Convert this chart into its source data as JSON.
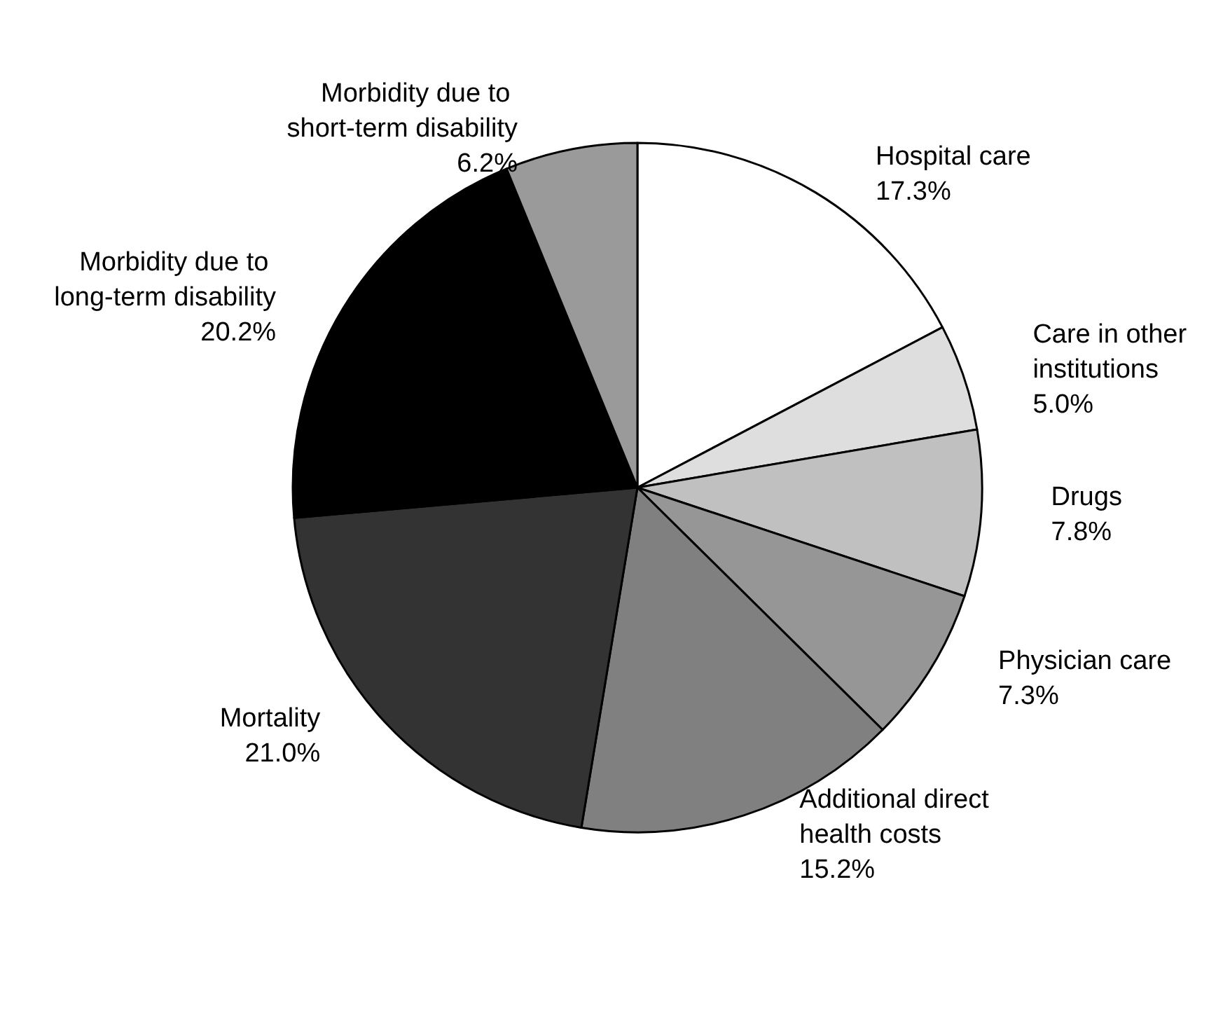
{
  "chart_data": {
    "type": "pie",
    "categories": [
      "Hospital care",
      "Care in other institutions",
      "Drugs",
      "Physician care",
      "Additional direct health costs",
      "Mortality",
      "Morbidity due to long-term disability",
      "Morbidity due to short-term disability"
    ],
    "values": [
      17.3,
      5.0,
      7.8,
      7.3,
      15.2,
      21.0,
      20.2,
      6.2
    ],
    "colors": [
      "#ffffff",
      "#dedede",
      "#c0c0c0",
      "#969696",
      "#808080",
      "#333333",
      "#000000",
      "#9a9a9a"
    ],
    "value_labels": [
      "17.3%",
      "5.0%",
      "7.8%",
      "7.3%",
      "15.2%",
      "21.0%",
      "20.2%",
      "6.2%"
    ],
    "legend": false
  }
}
